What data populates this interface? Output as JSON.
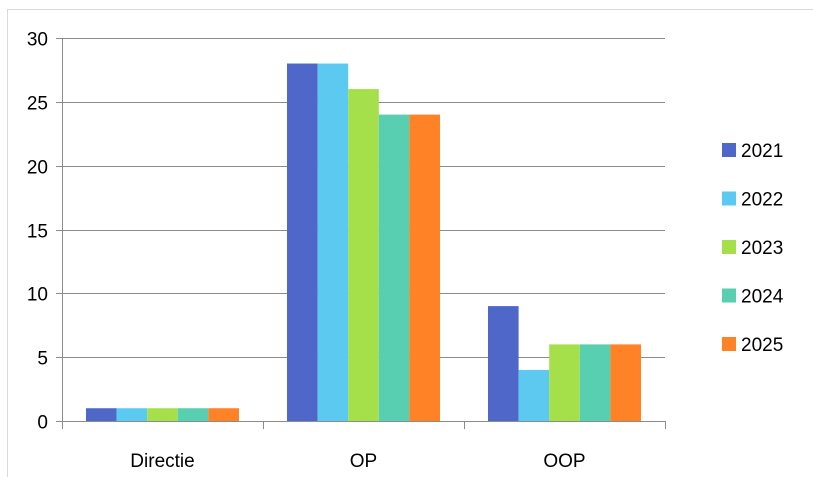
{
  "chart_data": {
    "type": "bar",
    "title": "",
    "xlabel": "",
    "ylabel": "",
    "categories": [
      "Directie",
      "OP",
      "OOP"
    ],
    "series": [
      {
        "name": "2021",
        "color": "#4F67C9",
        "values": [
          1,
          28,
          9
        ]
      },
      {
        "name": "2022",
        "color": "#5BC9F0",
        "values": [
          1,
          28,
          4
        ]
      },
      {
        "name": "2023",
        "color": "#A5E04A",
        "values": [
          1,
          26,
          6
        ]
      },
      {
        "name": "2024",
        "color": "#57CFB0",
        "values": [
          1,
          24,
          6
        ]
      },
      {
        "name": "2025",
        "color": "#FF8226",
        "values": [
          1,
          24,
          6
        ]
      }
    ],
    "ylim": [
      0,
      30
    ],
    "yticks": [
      0,
      5,
      10,
      15,
      20,
      25,
      30
    ],
    "grid": true,
    "legend_position": "right"
  }
}
